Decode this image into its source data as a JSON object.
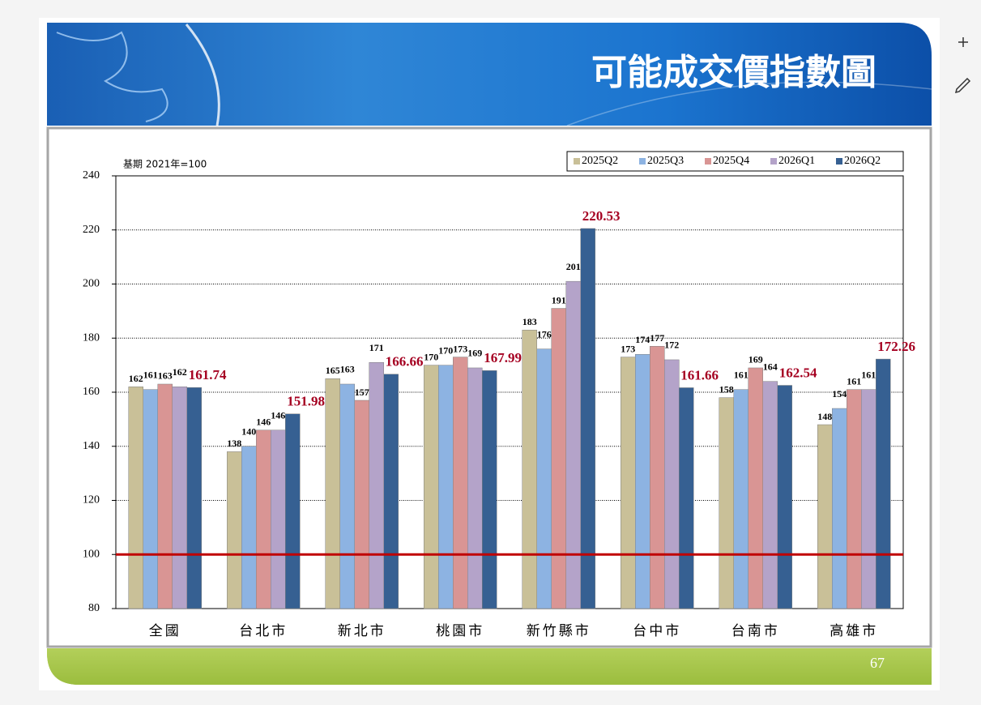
{
  "chart_data": {
    "type": "bar",
    "title": "可能成交價指數圖",
    "annotation": "基期 2021年=100",
    "categories": [
      "全國",
      "台北市",
      "新北市",
      "桃園市",
      "新竹縣市",
      "台中市",
      "台南市",
      "高雄市"
    ],
    "series": [
      {
        "name": "2025Q2",
        "color": "#c9c098",
        "values": [
          162,
          138,
          165,
          170,
          183,
          173,
          158,
          148
        ]
      },
      {
        "name": "2025Q3",
        "color": "#8db3e2",
        "values": [
          161,
          140,
          163,
          170,
          176,
          174,
          161,
          154
        ]
      },
      {
        "name": "2025Q4",
        "color": "#d99594",
        "values": [
          163,
          146,
          157,
          173,
          191,
          177,
          169,
          161
        ]
      },
      {
        "name": "2026Q1",
        "color": "#b4a3c9",
        "values": [
          162,
          146,
          171,
          169,
          201,
          172,
          164,
          161
        ]
      },
      {
        "name": "2026Q2",
        "color": "#366092",
        "values": [
          161.74,
          151.98,
          166.66,
          167.99,
          220.53,
          161.66,
          162.54,
          172.26
        ]
      }
    ],
    "ylim": [
      80,
      240
    ],
    "yticks": [
      80,
      100,
      120,
      140,
      160,
      180,
      200,
      220,
      240
    ],
    "grid": true,
    "reference_line": {
      "value": 100,
      "color": "#c00000"
    },
    "legend": "top-right"
  },
  "page_number": "67"
}
